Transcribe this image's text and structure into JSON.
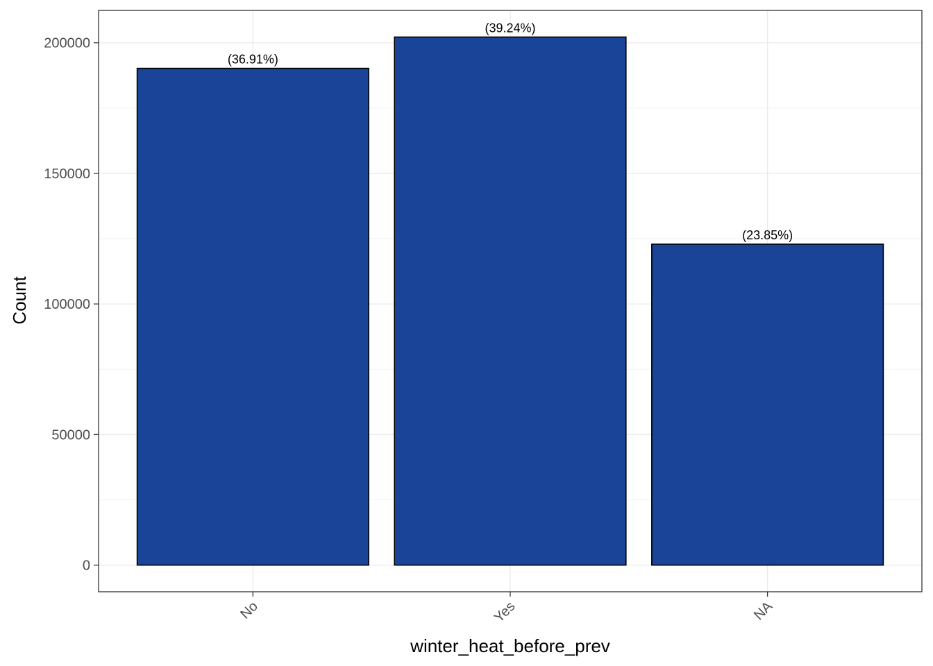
{
  "chart_data": {
    "type": "bar",
    "title": "",
    "xlabel": "winter_heat_before_prev",
    "ylabel": "Count",
    "categories": [
      "No",
      "Yes",
      "NA"
    ],
    "values": [
      190200,
      202200,
      122900
    ],
    "bar_labels": [
      "(36.91%)",
      "(39.24%)",
      "(23.85%)"
    ],
    "ylim": [
      -10200,
      212400
    ],
    "yticks": [
      0,
      50000,
      100000,
      150000,
      200000
    ],
    "ytick_labels": [
      "0",
      "50000",
      "100000",
      "150000",
      "200000"
    ],
    "grid": true,
    "legend": "none",
    "colors": {
      "bar_fill": "#1a4498",
      "bar_stroke": "#000000",
      "grid_major": "#ebebeb",
      "grid_minor": "#f2f2f2",
      "panel_border": "#333333"
    }
  }
}
